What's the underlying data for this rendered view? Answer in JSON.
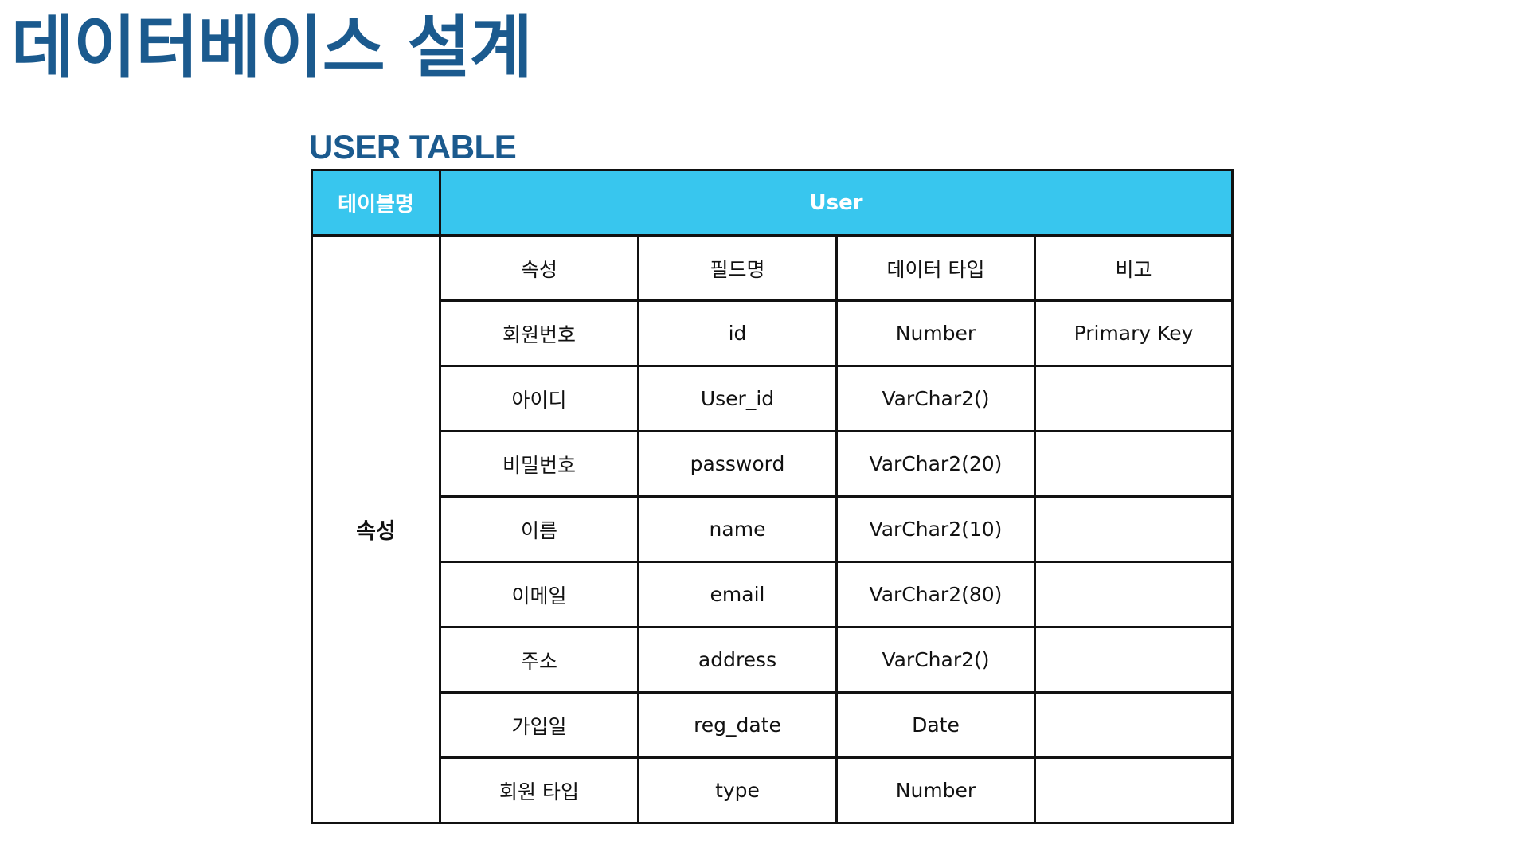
{
  "page": {
    "title": "데이터베이스 설계"
  },
  "section": {
    "title": "USER TABLE"
  },
  "table": {
    "header_label": "테이블명",
    "header_value": "User",
    "group_label": "속성",
    "columns": [
      "속성",
      "필드명",
      "데이터 타입",
      "비고"
    ],
    "rows": [
      [
        "회원번호",
        "id",
        "Number",
        "Primary Key"
      ],
      [
        "아이디",
        "User_id",
        "VarChar2()",
        ""
      ],
      [
        "비밀번호",
        "password",
        "VarChar2(20)",
        ""
      ],
      [
        "이름",
        "name",
        "VarChar2(10)",
        ""
      ],
      [
        "이메일",
        "email",
        "VarChar2(80)",
        ""
      ],
      [
        "주소",
        "address",
        "VarChar2()",
        ""
      ],
      [
        "가입일",
        "reg_date",
        "Date",
        ""
      ],
      [
        "회원 타입",
        "type",
        "Number",
        ""
      ]
    ]
  },
  "colors": {
    "title": "#1b5a8e",
    "header_background": "#38c6ee",
    "header_text": "#ffffff",
    "border": "#111111"
  }
}
